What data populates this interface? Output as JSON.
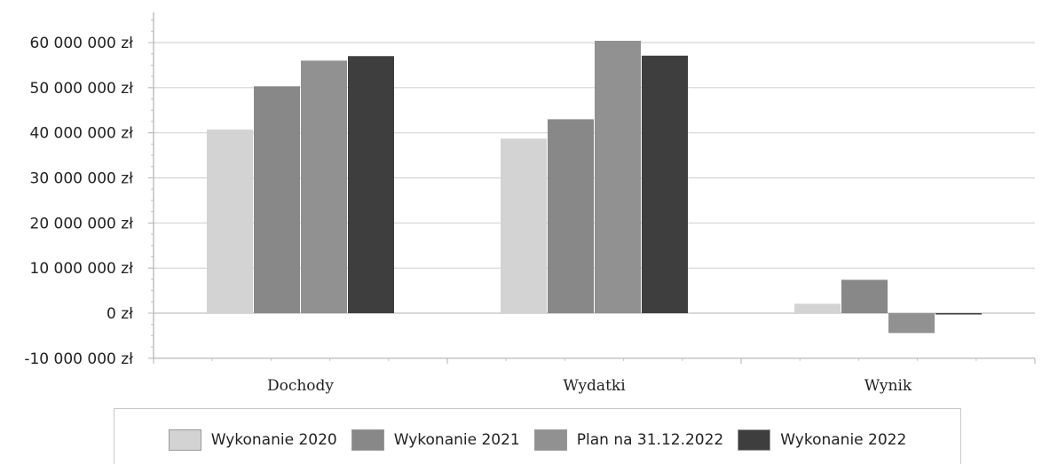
{
  "chart_data": {
    "type": "bar",
    "categories": [
      "Dochody",
      "Wydatki",
      "Wynik"
    ],
    "series": [
      {
        "name": "Wykonanie 2020",
        "color": "#d3d3d3",
        "values": [
          40700000,
          38700000,
          2100000
        ]
      },
      {
        "name": "Wykonanie 2021",
        "color": "#888888",
        "values": [
          50300000,
          43000000,
          7400000
        ]
      },
      {
        "name": "Plan na 31.12.2022",
        "color": "#919191",
        "values": [
          56000000,
          60400000,
          -4400000
        ]
      },
      {
        "name": "Wykonanie 2022",
        "color": "#3e3e3e",
        "values": [
          57000000,
          57100000,
          -300000
        ]
      }
    ],
    "ylim": [
      -10000000,
      65000000
    ],
    "yticks": [
      -10000000,
      0,
      10000000,
      20000000,
      30000000,
      40000000,
      50000000,
      60000000
    ],
    "ytick_labels": [
      "-10 000 000 zł",
      "0 zł",
      "10 000 000 zł",
      "20 000 000 zł",
      "30 000 000 zł",
      "40 000 000 zł",
      "50 000 000 zł",
      "60 000 000 zł"
    ],
    "grid": true,
    "legend_position": "bottom",
    "xlabel": "",
    "ylabel": "",
    "title": ""
  }
}
